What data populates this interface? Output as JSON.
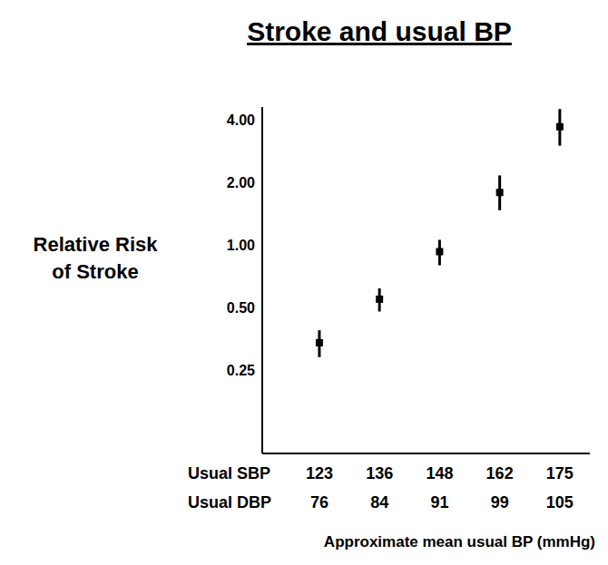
{
  "chart_data": {
    "type": "scatter",
    "title": "Stroke and usual BP",
    "y_label": "Relative Risk of Stroke",
    "x_label": "Approximate mean usual BP (mmHg)",
    "x_rows": [
      {
        "name": "Usual SBP",
        "values": [
          123,
          136,
          148,
          162,
          175
        ]
      },
      {
        "name": "Usual DBP",
        "values": [
          76,
          84,
          91,
          99,
          105
        ]
      }
    ],
    "values": [
      0.34,
      0.55,
      0.93,
      1.79,
      3.7
    ],
    "error_low": [
      0.29,
      0.48,
      0.8,
      1.47,
      3.0
    ],
    "error_high": [
      0.39,
      0.62,
      1.06,
      2.16,
      4.5
    ],
    "color": "#000000",
    "marker": "square",
    "log": "y",
    "ylim": [
      0.1,
      4.6
    ],
    "yticks": [
      0.25,
      {
        "value": 0.5,
        "label": "0.50"
      },
      {
        "value": 1,
        "label": "1.00"
      },
      {
        "value": 2,
        "label": "2.00"
      },
      {
        "value": 4,
        "label": "4.00"
      }
    ]
  }
}
